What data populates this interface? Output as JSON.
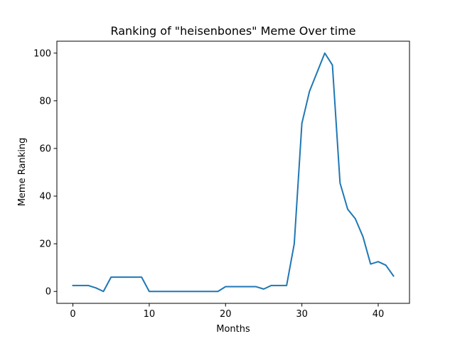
{
  "chart_data": {
    "type": "line",
    "title": "Ranking of \"heisenbones\" Meme Over time",
    "xlabel": "Months",
    "ylabel": "Meme Ranking",
    "xlim": [
      -2.1,
      44.1
    ],
    "ylim": [
      -5,
      105
    ],
    "xticks": [
      0,
      10,
      20,
      30,
      40
    ],
    "yticks": [
      0,
      20,
      40,
      60,
      80,
      100
    ],
    "grid": false,
    "series": [
      {
        "color": "#1f77b4",
        "x": [
          0,
          1,
          2,
          3,
          4,
          5,
          6,
          7,
          8,
          9,
          10,
          11,
          12,
          13,
          14,
          15,
          16,
          17,
          18,
          19,
          20,
          21,
          22,
          23,
          24,
          25,
          26,
          27,
          28,
          29,
          30,
          31,
          32,
          33,
          34,
          35,
          36,
          37,
          38,
          39,
          40,
          41,
          42
        ],
        "y": [
          2.5,
          2.5,
          2.5,
          1.5,
          0,
          6,
          6,
          6,
          6,
          6,
          0,
          0,
          0,
          0,
          0,
          0,
          0,
          0,
          0,
          0,
          2,
          2,
          2,
          2,
          2,
          1,
          2.5,
          2.5,
          2.5,
          20,
          70.5,
          84,
          92,
          100,
          95,
          45.5,
          34.5,
          30.5,
          23,
          11.5,
          12.5,
          11,
          6.5
        ]
      }
    ]
  }
}
